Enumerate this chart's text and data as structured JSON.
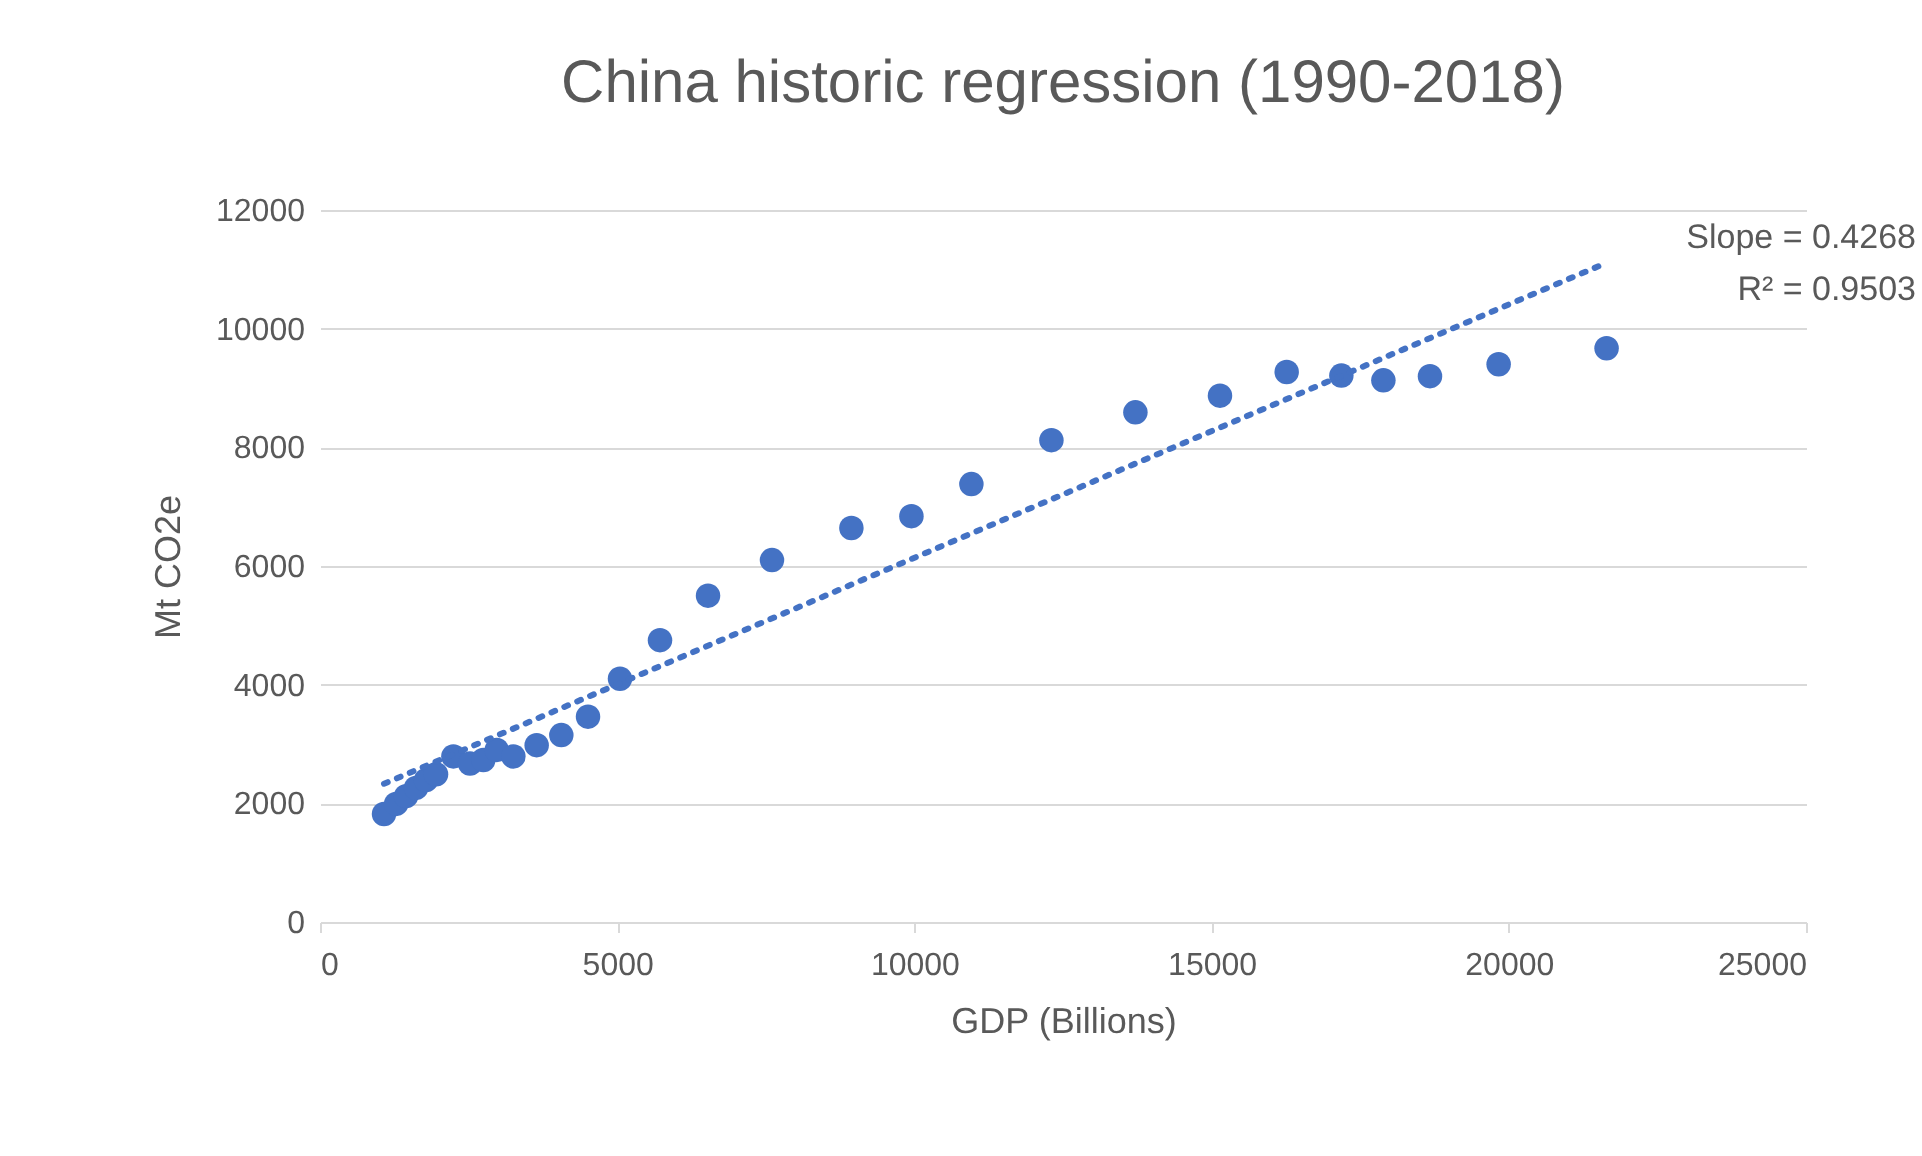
{
  "chart_data": {
    "type": "scatter",
    "title": "China historic regression (1990-2018)",
    "xlabel": "GDP (Billions)",
    "ylabel": "Mt CO2e",
    "xlim": [
      0,
      25000
    ],
    "xticks": [
      0,
      5000,
      10000,
      15000,
      20000,
      25000
    ],
    "ylim": [
      0,
      12000
    ],
    "yticks": [
      0,
      2000,
      4000,
      6000,
      8000,
      10000,
      12000
    ],
    "grid": "y",
    "series": [
      {
        "marker": "circle",
        "color": "#4472c4",
        "x": [
          1077,
          1280,
          1447,
          1615,
          1783,
          1952,
          2244,
          2524,
          2748,
          2973,
          3253,
          3645,
          4060,
          4509,
          5047,
          5720,
          6528,
          7604,
          8940,
          9950,
          10959,
          12305,
          13718,
          15141,
          16263,
          17183,
          17890,
          18674,
          19829,
          21645
        ],
        "values": [
          1820,
          1990,
          2120,
          2260,
          2390,
          2490,
          2790,
          2670,
          2730,
          2900,
          2790,
          2980,
          3150,
          3460,
          4100,
          4750,
          5500,
          6100,
          6640,
          6840,
          7380,
          8120,
          8590,
          8870,
          9270,
          9210,
          9130,
          9200,
          9400,
          9670
        ]
      },
      {
        "type": "line",
        "marker": "none",
        "color": "#4472c4",
        "line_style": "dotted",
        "x": [
          1077,
          21645
        ],
        "values": [
          2330,
          11110
        ]
      }
    ],
    "annotations": [
      "Slope = 0.4268",
      "R² = 0.9503"
    ]
  }
}
